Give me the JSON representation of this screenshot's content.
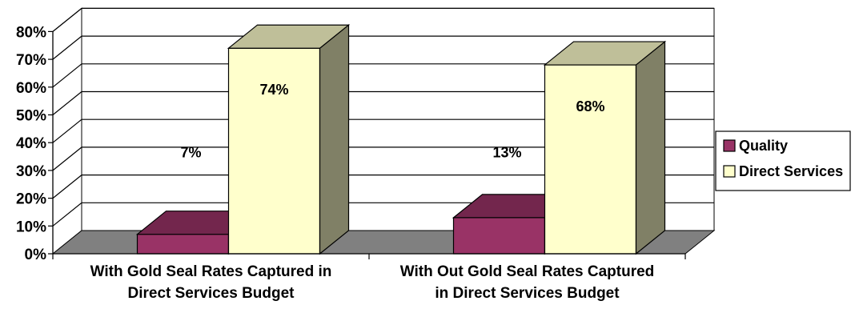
{
  "chart_data": {
    "type": "bar",
    "categories": [
      [
        "With Gold Seal Rates Captured in",
        "Direct Services Budget"
      ],
      [
        "With Out Gold Seal Rates Captured",
        "in Direct Services Budget"
      ]
    ],
    "series": [
      {
        "name": "Quality",
        "values": [
          7,
          13
        ],
        "labels": [
          "7%",
          "13%"
        ],
        "color": "#993366"
      },
      {
        "name": "Direct Services",
        "values": [
          74,
          68
        ],
        "labels": [
          "74%",
          "68%"
        ],
        "color": "#FFFFCC"
      }
    ],
    "y_ticks": [
      "0%",
      "10%",
      "20%",
      "30%",
      "40%",
      "50%",
      "60%",
      "70%",
      "80%"
    ],
    "ylim": [
      0,
      80
    ],
    "y_unit": "%",
    "three_d": true,
    "grid": true,
    "legend_position": "right",
    "colors": {
      "floor": "#808080",
      "gridline": "#000000"
    }
  }
}
